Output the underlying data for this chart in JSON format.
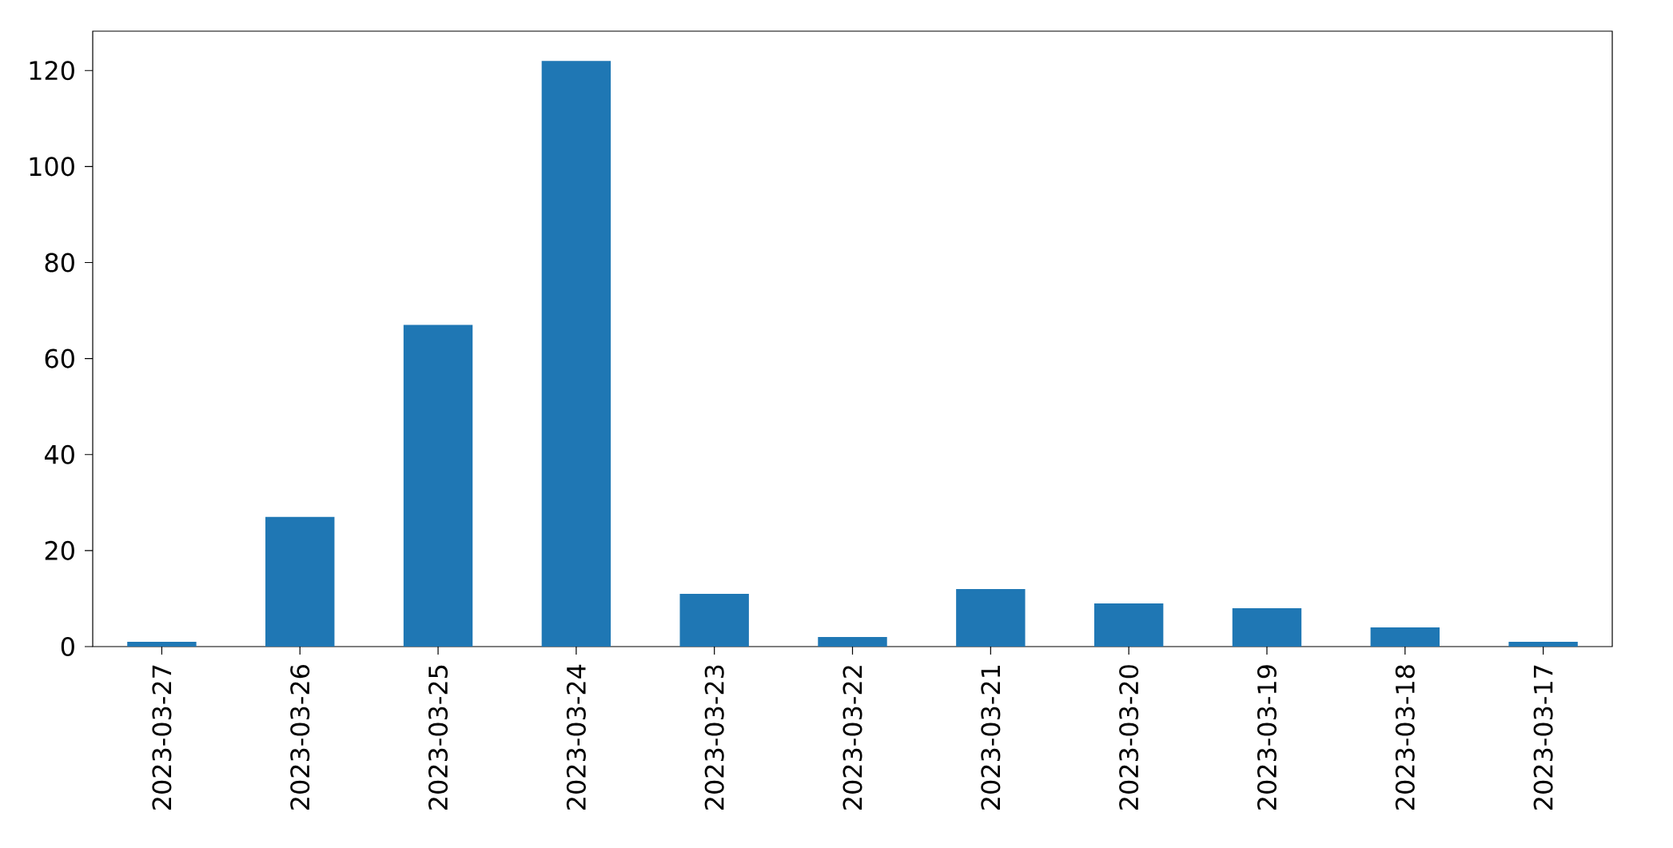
{
  "chart_data": {
    "type": "bar",
    "categories": [
      "2023-03-27",
      "2023-03-26",
      "2023-03-25",
      "2023-03-24",
      "2023-03-23",
      "2023-03-22",
      "2023-03-21",
      "2023-03-20",
      "2023-03-19",
      "2023-03-18",
      "2023-03-17"
    ],
    "values": [
      1,
      27,
      67,
      122,
      11,
      2,
      12,
      9,
      8,
      4,
      1
    ],
    "color": "#1f77b4",
    "ylim": [
      0,
      128.2
    ],
    "yticks": [
      0,
      20,
      40,
      60,
      80,
      100,
      120
    ]
  }
}
